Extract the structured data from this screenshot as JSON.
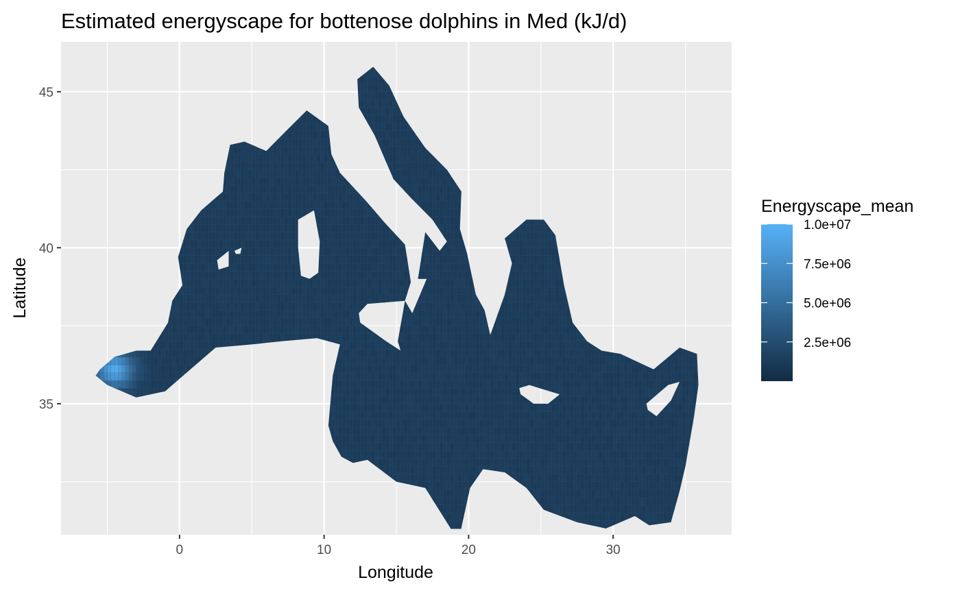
{
  "chart_data": {
    "type": "heatmap",
    "title": "Estimated energyscape for bottenose dolphins in Med (kJ/d)",
    "xlabel": "Longitude",
    "ylabel": "Latitude",
    "xlim": [
      -8.2,
      38.2
    ],
    "ylim": [
      30.8,
      46.6
    ],
    "x_ticks": [
      0,
      10,
      20,
      30
    ],
    "y_ticks": [
      35,
      40,
      45
    ],
    "x_tick_labels": [
      "0",
      "10",
      "20",
      "30"
    ],
    "y_tick_labels": [
      "35",
      "40",
      "45"
    ],
    "grid": true,
    "panel_background": "#EBEBEB",
    "grid_color": "#FFFFFF",
    "cell_size_deg": 0.25,
    "legend": {
      "title": "Energyscape_mean",
      "position": "right",
      "scale_min": 0,
      "scale_max": 10000000,
      "breaks": [
        10000000,
        7500000,
        5000000,
        2500000
      ],
      "labels": [
        "1.0e+07",
        "7.5e+06",
        "5.0e+06",
        "2.5e+06"
      ],
      "low_color": "#132B43",
      "high_color": "#56B1F7"
    },
    "typical_value": 1300000,
    "sea_polygons": [
      [
        [
          -5.8,
          35.9
        ],
        [
          -5.0,
          35.6
        ],
        [
          -3.0,
          35.2
        ],
        [
          -1.0,
          35.4
        ],
        [
          0.5,
          36.0
        ],
        [
          2.5,
          36.8
        ],
        [
          5.0,
          36.9
        ],
        [
          7.0,
          37.0
        ],
        [
          9.5,
          37.1
        ],
        [
          11.1,
          36.9
        ],
        [
          10.6,
          35.9
        ],
        [
          10.3,
          34.3
        ],
        [
          10.6,
          33.8
        ],
        [
          11.2,
          33.3
        ],
        [
          12.0,
          33.1
        ],
        [
          13.0,
          33.2
        ],
        [
          15.0,
          32.5
        ],
        [
          17.0,
          32.3
        ],
        [
          19.3,
          30.6
        ],
        [
          20.1,
          32.3
        ],
        [
          21.0,
          32.9
        ],
        [
          22.5,
          32.8
        ],
        [
          24.0,
          32.3
        ],
        [
          25.2,
          31.6
        ],
        [
          27.5,
          31.2
        ],
        [
          29.5,
          31.0
        ],
        [
          31.5,
          31.4
        ],
        [
          32.5,
          31.1
        ],
        [
          34.0,
          31.2
        ],
        [
          34.6,
          32.2
        ],
        [
          35.0,
          33.0
        ],
        [
          35.6,
          34.6
        ],
        [
          35.9,
          35.6
        ],
        [
          35.8,
          36.6
        ],
        [
          34.6,
          36.8
        ],
        [
          32.8,
          36.1
        ],
        [
          30.5,
          36.6
        ],
        [
          29.2,
          36.7
        ],
        [
          28.2,
          37.0
        ],
        [
          27.2,
          37.6
        ],
        [
          26.6,
          38.8
        ],
        [
          26.3,
          39.6
        ],
        [
          26.0,
          40.4
        ],
        [
          25.2,
          40.9
        ],
        [
          24.0,
          40.9
        ],
        [
          23.0,
          40.5
        ],
        [
          22.5,
          40.3
        ],
        [
          23.0,
          39.5
        ],
        [
          22.5,
          38.5
        ],
        [
          21.5,
          37.2
        ],
        [
          21.1,
          38.0
        ],
        [
          20.5,
          38.5
        ],
        [
          19.9,
          39.8
        ],
        [
          19.4,
          40.6
        ],
        [
          19.5,
          41.8
        ],
        [
          18.5,
          42.5
        ],
        [
          17.0,
          43.2
        ],
        [
          15.5,
          44.2
        ],
        [
          14.5,
          45.2
        ],
        [
          13.4,
          45.8
        ],
        [
          12.3,
          45.4
        ],
        [
          12.4,
          44.5
        ],
        [
          13.5,
          43.6
        ],
        [
          14.8,
          42.2
        ],
        [
          16.0,
          41.6
        ],
        [
          17.5,
          40.9
        ],
        [
          18.5,
          40.2
        ],
        [
          18.0,
          39.9
        ],
        [
          17.0,
          40.5
        ],
        [
          16.5,
          39.0
        ],
        [
          17.1,
          39.0
        ],
        [
          16.1,
          37.9
        ],
        [
          15.6,
          38.3
        ],
        [
          16.0,
          38.9
        ],
        [
          15.6,
          40.1
        ],
        [
          14.2,
          40.8
        ],
        [
          12.9,
          41.5
        ],
        [
          11.1,
          42.4
        ],
        [
          10.5,
          43.0
        ],
        [
          10.3,
          43.9
        ],
        [
          8.8,
          44.4
        ],
        [
          7.5,
          43.8
        ],
        [
          6.0,
          43.1
        ],
        [
          4.5,
          43.4
        ],
        [
          3.5,
          43.3
        ],
        [
          3.1,
          42.4
        ],
        [
          3.0,
          41.8
        ],
        [
          1.5,
          41.2
        ],
        [
          0.5,
          40.6
        ],
        [
          -0.1,
          39.7
        ],
        [
          0.2,
          38.8
        ],
        [
          -0.5,
          38.3
        ],
        [
          -0.8,
          37.6
        ],
        [
          -2.0,
          36.7
        ],
        [
          -3.0,
          36.7
        ],
        [
          -4.5,
          36.5
        ],
        [
          -5.5,
          36.1
        ]
      ]
    ],
    "land_polygons": [
      [
        [
          8.2,
          40.9
        ],
        [
          9.3,
          41.2
        ],
        [
          9.7,
          40.2
        ],
        [
          9.6,
          39.2
        ],
        [
          9.0,
          39.0
        ],
        [
          8.4,
          39.1
        ],
        [
          8.2,
          40.0
        ]
      ],
      [
        [
          8.6,
          41.0
        ],
        [
          9.4,
          41.3
        ],
        [
          9.6,
          42.1
        ],
        [
          9.4,
          43.0
        ],
        [
          8.6,
          42.5
        ],
        [
          8.6,
          41.7
        ]
      ],
      [
        [
          12.4,
          37.9
        ],
        [
          13.0,
          38.2
        ],
        [
          15.6,
          38.3
        ],
        [
          15.1,
          37.0
        ],
        [
          15.3,
          36.7
        ],
        [
          14.3,
          37.0
        ],
        [
          12.5,
          37.6
        ]
      ],
      [
        [
          23.5,
          35.5
        ],
        [
          24.2,
          35.6
        ],
        [
          26.3,
          35.3
        ],
        [
          25.5,
          35.0
        ],
        [
          24.5,
          35.0
        ],
        [
          23.6,
          35.3
        ]
      ],
      [
        [
          32.3,
          35.0
        ],
        [
          33.8,
          35.6
        ],
        [
          34.6,
          35.7
        ],
        [
          34.0,
          35.1
        ],
        [
          33.0,
          34.6
        ],
        [
          32.4,
          34.8
        ]
      ],
      [
        [
          3.8,
          39.9
        ],
        [
          4.3,
          40.0
        ],
        [
          4.2,
          39.8
        ],
        [
          3.9,
          39.8
        ]
      ],
      [
        [
          2.6,
          39.6
        ],
        [
          3.4,
          39.9
        ],
        [
          3.4,
          39.4
        ],
        [
          2.7,
          39.3
        ]
      ]
    ],
    "hotspot": {
      "center": [
        -4.5,
        36.1
      ],
      "peak_value": 9500000,
      "radius_deg": 1.6
    }
  }
}
